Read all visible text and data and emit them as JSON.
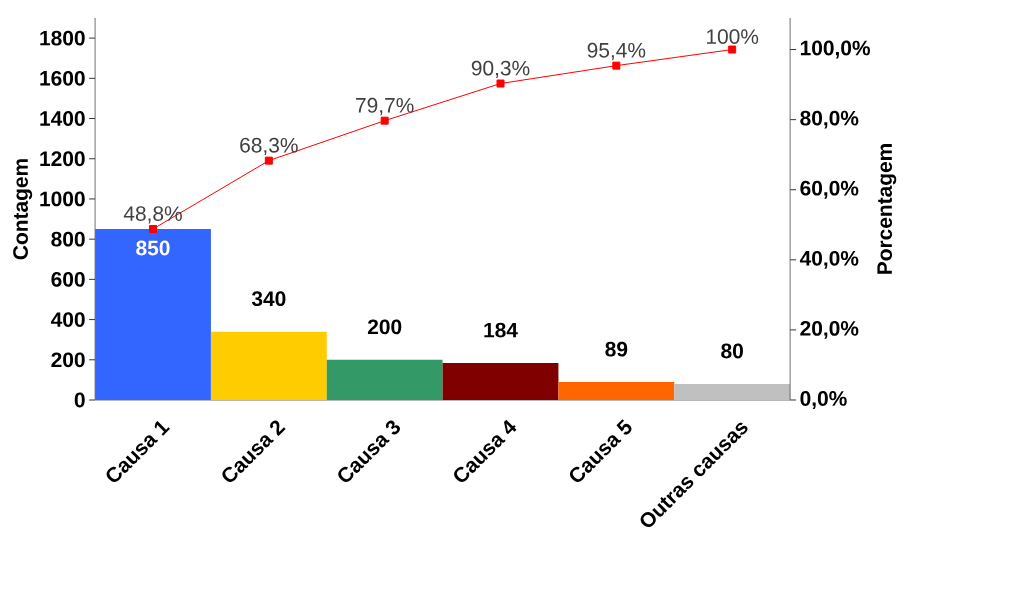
{
  "chart_data": {
    "type": "bar",
    "ylabel": "Contagem",
    "y2label": "Porcentagem",
    "categories": [
      "Causa 1",
      "Causa 2",
      "Causa 3",
      "Causa 4",
      "Causa 5",
      "Outras causas"
    ],
    "ylim": [
      0,
      1900
    ],
    "yticks": [
      0,
      200,
      400,
      600,
      800,
      1000,
      1200,
      1400,
      1600,
      1800
    ],
    "y2lim": [
      0,
      109
    ],
    "y2ticks": [
      {
        "value": 0,
        "label": "0,0%"
      },
      {
        "value": 20,
        "label": "20,0%"
      },
      {
        "value": 40,
        "label": "40,0%"
      },
      {
        "value": 60,
        "label": "60,0%"
      },
      {
        "value": 80,
        "label": "80,0%"
      },
      {
        "value": 100,
        "label": "100,0%"
      }
    ],
    "marker": "square",
    "line_style": "solid",
    "series": [
      {
        "colors": [
          "#3366ff",
          "#ffcc00",
          "#339966",
          "#800000",
          "#ff6600",
          "#c0c0c0"
        ],
        "values": [
          850,
          340,
          200,
          184,
          89,
          80
        ],
        "value_labels": [
          "850",
          "340",
          "200",
          "184",
          "89",
          "80"
        ]
      },
      {
        "type": "line",
        "axis": "y2",
        "color": "#ff0000",
        "values": [
          48.8,
          68.3,
          79.7,
          90.3,
          95.4,
          100
        ],
        "value_labels": [
          "48,8%",
          "68,3%",
          "79,7%",
          "90,3%",
          "95,4%",
          "100%"
        ]
      }
    ]
  }
}
